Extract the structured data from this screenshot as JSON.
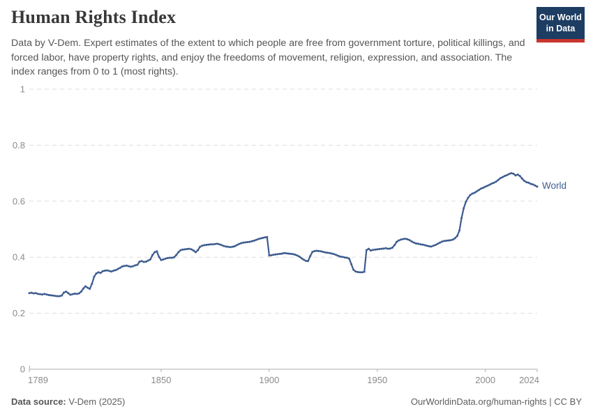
{
  "header": {
    "title": "Human Rights Index",
    "subtitle": "Data by V-Dem. Expert estimates of the extent to which people are free from government torture, political killings, and forced labor, have property rights, and enjoy the freedoms of movement, religion, expression, and association. The index ranges from 0 to 1 (most rights).",
    "logo": {
      "line1": "Our World",
      "line2": "in Data",
      "bg_color": "#1d3d63",
      "accent_color": "#c9352e"
    }
  },
  "chart_data": {
    "type": "line",
    "title": "Human Rights Index",
    "xlabel": "",
    "ylabel": "",
    "xlim": [
      1789,
      2024
    ],
    "ylim": [
      0,
      1
    ],
    "x_ticks": [
      1789,
      1850,
      1900,
      1950,
      2000,
      2024
    ],
    "y_ticks": [
      0,
      0.2,
      0.4,
      0.6,
      0.8,
      1
    ],
    "grid": "horizontal-dashed",
    "legend_position": "end-of-line-label",
    "colors": {
      "grid": "#dddddd",
      "axis": "#adadad",
      "tick_label": "#8a8a8a"
    },
    "series": [
      {
        "name": "World",
        "color": "#3d5c8f",
        "points": [
          [
            1789,
            0.272
          ],
          [
            1790,
            0.273
          ],
          [
            1791,
            0.271
          ],
          [
            1792,
            0.272
          ],
          [
            1793,
            0.269
          ],
          [
            1794,
            0.268
          ],
          [
            1795,
            0.267
          ],
          [
            1796,
            0.269
          ],
          [
            1797,
            0.267
          ],
          [
            1798,
            0.265
          ],
          [
            1799,
            0.264
          ],
          [
            1800,
            0.263
          ],
          [
            1801,
            0.262
          ],
          [
            1802,
            0.261
          ],
          [
            1803,
            0.261
          ],
          [
            1804,
            0.263
          ],
          [
            1805,
            0.274
          ],
          [
            1806,
            0.277
          ],
          [
            1807,
            0.272
          ],
          [
            1808,
            0.266
          ],
          [
            1809,
            0.268
          ],
          [
            1810,
            0.27
          ],
          [
            1811,
            0.269
          ],
          [
            1812,
            0.271
          ],
          [
            1813,
            0.277
          ],
          [
            1814,
            0.288
          ],
          [
            1815,
            0.296
          ],
          [
            1816,
            0.291
          ],
          [
            1817,
            0.287
          ],
          [
            1818,
            0.305
          ],
          [
            1819,
            0.33
          ],
          [
            1820,
            0.342
          ],
          [
            1821,
            0.346
          ],
          [
            1822,
            0.344
          ],
          [
            1823,
            0.35
          ],
          [
            1824,
            0.352
          ],
          [
            1825,
            0.353
          ],
          [
            1826,
            0.351
          ],
          [
            1827,
            0.349
          ],
          [
            1828,
            0.352
          ],
          [
            1829,
            0.354
          ],
          [
            1830,
            0.358
          ],
          [
            1831,
            0.362
          ],
          [
            1832,
            0.367
          ],
          [
            1833,
            0.369
          ],
          [
            1834,
            0.37
          ],
          [
            1835,
            0.368
          ],
          [
            1836,
            0.366
          ],
          [
            1837,
            0.368
          ],
          [
            1838,
            0.371
          ],
          [
            1839,
            0.373
          ],
          [
            1840,
            0.384
          ],
          [
            1841,
            0.386
          ],
          [
            1842,
            0.383
          ],
          [
            1843,
            0.384
          ],
          [
            1844,
            0.388
          ],
          [
            1845,
            0.392
          ],
          [
            1846,
            0.408
          ],
          [
            1847,
            0.418
          ],
          [
            1848,
            0.421
          ],
          [
            1849,
            0.401
          ],
          [
            1850,
            0.39
          ],
          [
            1851,
            0.392
          ],
          [
            1852,
            0.395
          ],
          [
            1853,
            0.397
          ],
          [
            1854,
            0.398
          ],
          [
            1855,
            0.398
          ],
          [
            1856,
            0.4
          ],
          [
            1857,
            0.408
          ],
          [
            1858,
            0.418
          ],
          [
            1859,
            0.425
          ],
          [
            1860,
            0.427
          ],
          [
            1861,
            0.428
          ],
          [
            1862,
            0.429
          ],
          [
            1863,
            0.43
          ],
          [
            1864,
            0.428
          ],
          [
            1865,
            0.424
          ],
          [
            1866,
            0.418
          ],
          [
            1867,
            0.425
          ],
          [
            1868,
            0.437
          ],
          [
            1869,
            0.441
          ],
          [
            1870,
            0.443
          ],
          [
            1871,
            0.444
          ],
          [
            1872,
            0.445
          ],
          [
            1873,
            0.446
          ],
          [
            1874,
            0.446
          ],
          [
            1875,
            0.447
          ],
          [
            1876,
            0.448
          ],
          [
            1877,
            0.446
          ],
          [
            1878,
            0.443
          ],
          [
            1879,
            0.44
          ],
          [
            1880,
            0.438
          ],
          [
            1881,
            0.437
          ],
          [
            1882,
            0.436
          ],
          [
            1883,
            0.437
          ],
          [
            1884,
            0.439
          ],
          [
            1885,
            0.443
          ],
          [
            1886,
            0.447
          ],
          [
            1887,
            0.45
          ],
          [
            1888,
            0.452
          ],
          [
            1889,
            0.453
          ],
          [
            1890,
            0.454
          ],
          [
            1891,
            0.455
          ],
          [
            1892,
            0.457
          ],
          [
            1893,
            0.459
          ],
          [
            1894,
            0.462
          ],
          [
            1895,
            0.465
          ],
          [
            1896,
            0.467
          ],
          [
            1897,
            0.469
          ],
          [
            1898,
            0.471
          ],
          [
            1899,
            0.472
          ],
          [
            1900,
            0.406
          ],
          [
            1901,
            0.407
          ],
          [
            1902,
            0.409
          ],
          [
            1903,
            0.41
          ],
          [
            1904,
            0.411
          ],
          [
            1905,
            0.412
          ],
          [
            1906,
            0.413
          ],
          [
            1907,
            0.415
          ],
          [
            1908,
            0.414
          ],
          [
            1909,
            0.413
          ],
          [
            1910,
            0.412
          ],
          [
            1911,
            0.411
          ],
          [
            1912,
            0.409
          ],
          [
            1913,
            0.406
          ],
          [
            1914,
            0.402
          ],
          [
            1915,
            0.396
          ],
          [
            1916,
            0.391
          ],
          [
            1917,
            0.387
          ],
          [
            1918,
            0.386
          ],
          [
            1919,
            0.404
          ],
          [
            1920,
            0.419
          ],
          [
            1921,
            0.422
          ],
          [
            1922,
            0.423
          ],
          [
            1923,
            0.422
          ],
          [
            1924,
            0.421
          ],
          [
            1925,
            0.419
          ],
          [
            1926,
            0.417
          ],
          [
            1927,
            0.416
          ],
          [
            1928,
            0.415
          ],
          [
            1929,
            0.413
          ],
          [
            1930,
            0.411
          ],
          [
            1931,
            0.408
          ],
          [
            1932,
            0.405
          ],
          [
            1933,
            0.402
          ],
          [
            1934,
            0.401
          ],
          [
            1935,
            0.399
          ],
          [
            1936,
            0.398
          ],
          [
            1937,
            0.395
          ],
          [
            1938,
            0.375
          ],
          [
            1939,
            0.355
          ],
          [
            1940,
            0.349
          ],
          [
            1941,
            0.347
          ],
          [
            1942,
            0.346
          ],
          [
            1943,
            0.346
          ],
          [
            1944,
            0.348
          ],
          [
            1945,
            0.425
          ],
          [
            1946,
            0.43
          ],
          [
            1947,
            0.424
          ],
          [
            1948,
            0.426
          ],
          [
            1949,
            0.427
          ],
          [
            1950,
            0.428
          ],
          [
            1951,
            0.429
          ],
          [
            1952,
            0.43
          ],
          [
            1953,
            0.431
          ],
          [
            1954,
            0.432
          ],
          [
            1955,
            0.43
          ],
          [
            1956,
            0.431
          ],
          [
            1957,
            0.434
          ],
          [
            1958,
            0.443
          ],
          [
            1959,
            0.455
          ],
          [
            1960,
            0.46
          ],
          [
            1961,
            0.463
          ],
          [
            1962,
            0.465
          ],
          [
            1963,
            0.466
          ],
          [
            1964,
            0.464
          ],
          [
            1965,
            0.461
          ],
          [
            1966,
            0.456
          ],
          [
            1967,
            0.452
          ],
          [
            1968,
            0.449
          ],
          [
            1969,
            0.448
          ],
          [
            1970,
            0.446
          ],
          [
            1971,
            0.445
          ],
          [
            1972,
            0.443
          ],
          [
            1973,
            0.441
          ],
          [
            1974,
            0.439
          ],
          [
            1975,
            0.438
          ],
          [
            1976,
            0.441
          ],
          [
            1977,
            0.444
          ],
          [
            1978,
            0.448
          ],
          [
            1979,
            0.452
          ],
          [
            1980,
            0.456
          ],
          [
            1981,
            0.458
          ],
          [
            1982,
            0.459
          ],
          [
            1983,
            0.46
          ],
          [
            1984,
            0.461
          ],
          [
            1985,
            0.463
          ],
          [
            1986,
            0.468
          ],
          [
            1987,
            0.476
          ],
          [
            1988,
            0.495
          ],
          [
            1989,
            0.54
          ],
          [
            1990,
            0.575
          ],
          [
            1991,
            0.598
          ],
          [
            1992,
            0.612
          ],
          [
            1993,
            0.622
          ],
          [
            1994,
            0.627
          ],
          [
            1995,
            0.63
          ],
          [
            1996,
            0.635
          ],
          [
            1997,
            0.64
          ],
          [
            1998,
            0.645
          ],
          [
            1999,
            0.648
          ],
          [
            2000,
            0.652
          ],
          [
            2001,
            0.655
          ],
          [
            2002,
            0.659
          ],
          [
            2003,
            0.663
          ],
          [
            2004,
            0.666
          ],
          [
            2005,
            0.67
          ],
          [
            2006,
            0.676
          ],
          [
            2007,
            0.682
          ],
          [
            2008,
            0.686
          ],
          [
            2009,
            0.69
          ],
          [
            2010,
            0.693
          ],
          [
            2011,
            0.697
          ],
          [
            2012,
            0.7
          ],
          [
            2013,
            0.698
          ],
          [
            2014,
            0.692
          ],
          [
            2015,
            0.695
          ],
          [
            2016,
            0.69
          ],
          [
            2017,
            0.681
          ],
          [
            2018,
            0.673
          ],
          [
            2019,
            0.668
          ],
          [
            2020,
            0.666
          ],
          [
            2021,
            0.662
          ],
          [
            2022,
            0.66
          ],
          [
            2023,
            0.656
          ],
          [
            2024,
            0.652
          ]
        ]
      }
    ]
  },
  "footer": {
    "source_label": "Data source:",
    "source_value": "V-Dem (2025)",
    "credit": "OurWorldinData.org/human-rights | CC BY"
  }
}
